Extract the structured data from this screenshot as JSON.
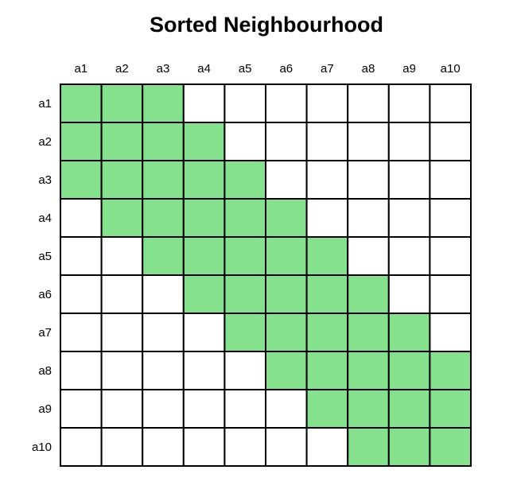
{
  "title": "Sorted Neighbourhood",
  "columns": [
    "a1",
    "a2",
    "a3",
    "a4",
    "a5",
    "a6",
    "a7",
    "a8",
    "a9",
    "a10"
  ],
  "rows": [
    "a1",
    "a2",
    "a3",
    "a4",
    "a5",
    "a6",
    "a7",
    "a8",
    "a9",
    "a10"
  ],
  "window_size": 3,
  "cells": [
    [
      1,
      1,
      1,
      0,
      0,
      0,
      0,
      0,
      0,
      0
    ],
    [
      1,
      1,
      1,
      1,
      0,
      0,
      0,
      0,
      0,
      0
    ],
    [
      1,
      1,
      1,
      1,
      1,
      0,
      0,
      0,
      0,
      0
    ],
    [
      0,
      1,
      1,
      1,
      1,
      1,
      0,
      0,
      0,
      0
    ],
    [
      0,
      0,
      1,
      1,
      1,
      1,
      1,
      0,
      0,
      0
    ],
    [
      0,
      0,
      0,
      1,
      1,
      1,
      1,
      1,
      0,
      0
    ],
    [
      0,
      0,
      0,
      0,
      1,
      1,
      1,
      1,
      1,
      0
    ],
    [
      0,
      0,
      0,
      0,
      0,
      1,
      1,
      1,
      1,
      1
    ],
    [
      0,
      0,
      0,
      0,
      0,
      0,
      1,
      1,
      1,
      1
    ],
    [
      0,
      0,
      0,
      0,
      0,
      0,
      0,
      1,
      1,
      1
    ]
  ],
  "colors": {
    "filled": "#86e18f",
    "empty": "#ffffff",
    "grid": "#000000"
  }
}
